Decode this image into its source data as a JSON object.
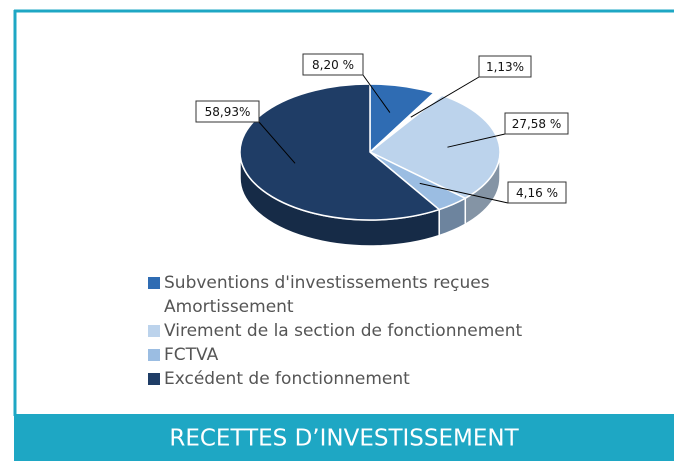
{
  "chart_data": {
    "type": "pie",
    "title": "RECETTES D’INVESTISSEMENT",
    "categories": [
      "Subventions d'investissements reçues",
      "Amortissement",
      "Virement de la section de fonctionnement",
      "FCTVA",
      "Excédent de fonctionnement"
    ],
    "values": [
      8.2,
      1.13,
      27.58,
      4.16,
      58.93
    ],
    "value_labels": [
      "8,20 %",
      "1,13%",
      "27,58 %",
      "4,16 %",
      "58,93%"
    ],
    "colors": [
      "#2f6cb3",
      "#ffffff",
      "#bcd3ec",
      "#9bbde2",
      "#1f3d66"
    ],
    "legend": "bottom"
  }
}
